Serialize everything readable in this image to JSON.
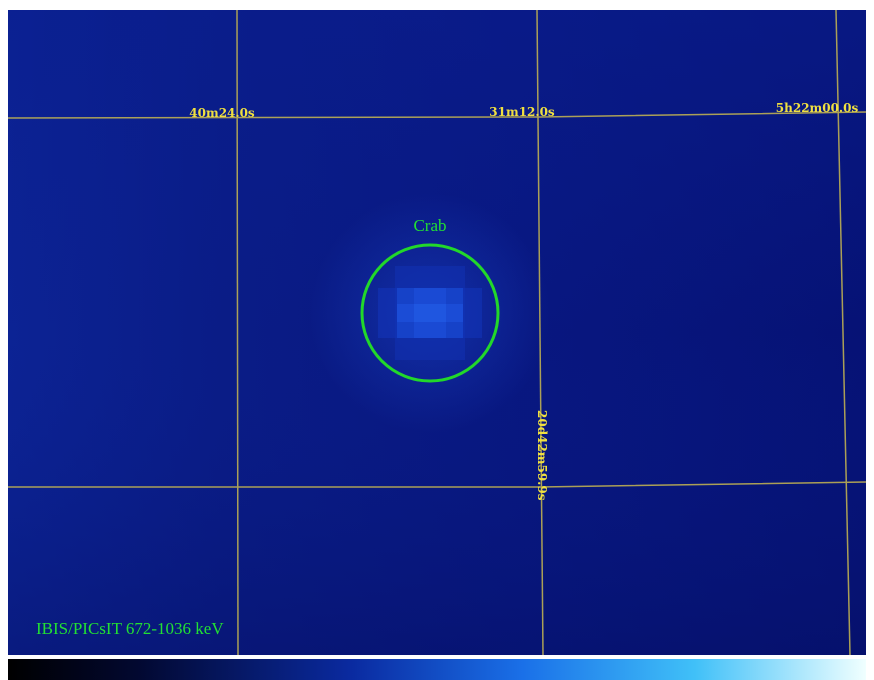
{
  "grid_labels": {
    "ra": [
      "40m24.0s",
      "31m12.0s",
      "5h22m00.0s"
    ],
    "dec": "20d42m59.9s"
  },
  "source": {
    "label": "Crab"
  },
  "caption": "IBIS/PICsIT 672-1036 keV"
}
